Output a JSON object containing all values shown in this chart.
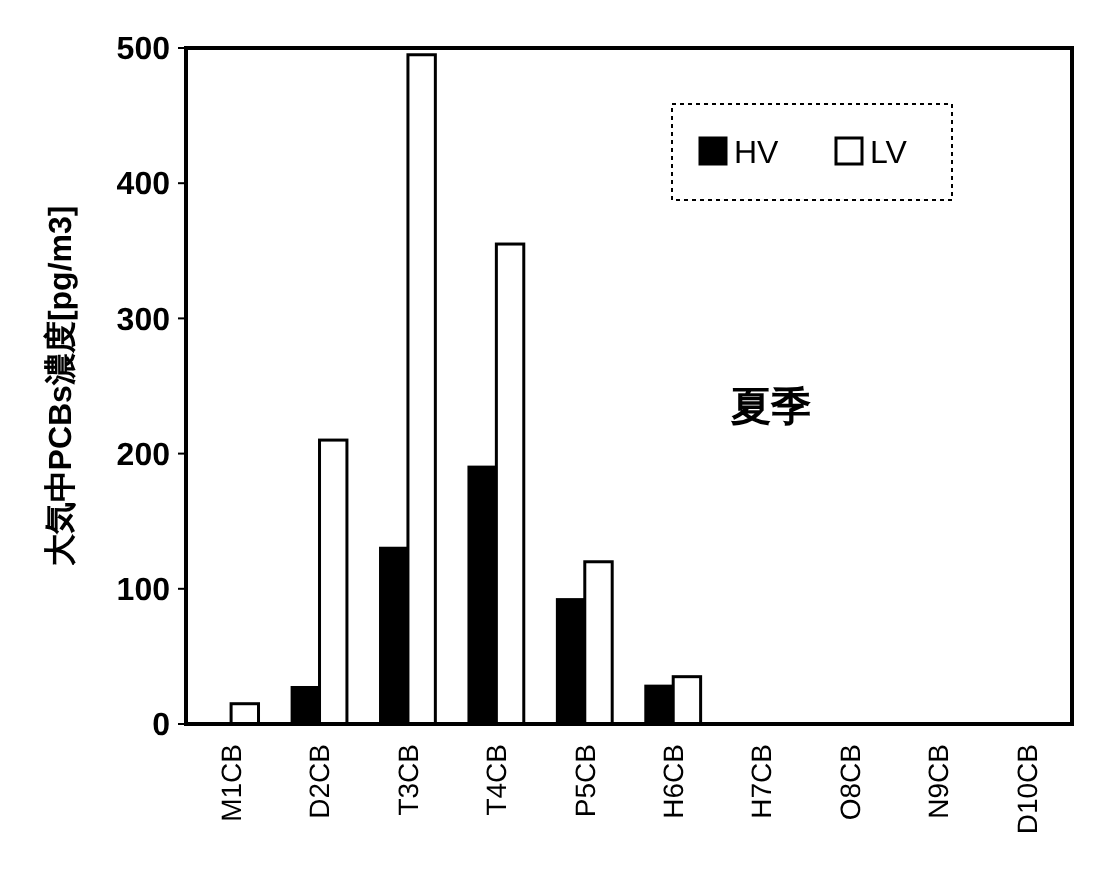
{
  "chart_data": {
    "type": "bar",
    "ylabel": "大気中PCBs濃度[pg/m3]",
    "categories": [
      "M1CB",
      "D2CB",
      "T3CB",
      "T4CB",
      "P5CB",
      "H6CB",
      "H7CB",
      "O8CB",
      "N9CB",
      "D10CB"
    ],
    "series": [
      {
        "name": "HV",
        "color": "#000000",
        "values": [
          0,
          27,
          130,
          190,
          92,
          28,
          null,
          0,
          0,
          0
        ]
      },
      {
        "name": "LV",
        "color": "#ffffff",
        "values": [
          15,
          210,
          495,
          355,
          120,
          35,
          null,
          0,
          0,
          0
        ]
      }
    ],
    "ylim": [
      0,
      500
    ],
    "yticks": [
      0,
      100,
      200,
      300,
      400,
      500
    ],
    "grid": false,
    "legend": "top right",
    "annotations": [
      "夏季"
    ]
  }
}
